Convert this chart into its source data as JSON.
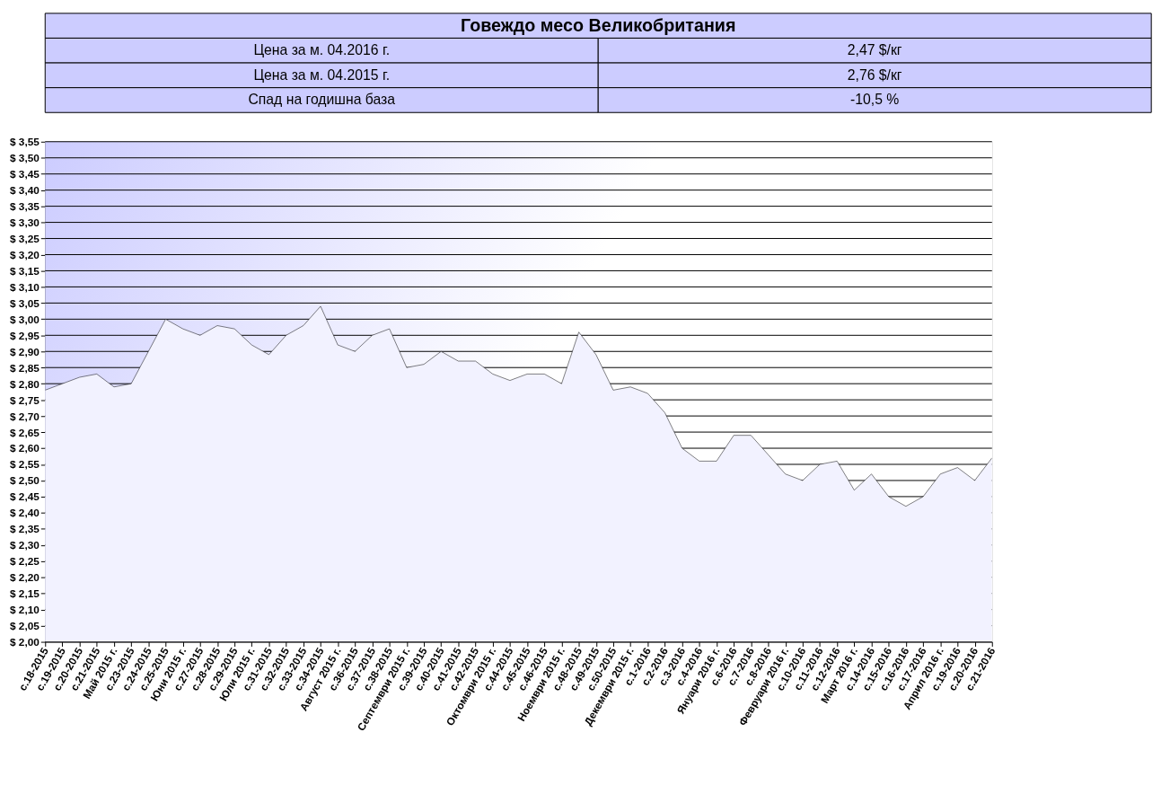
{
  "chart_data": {
    "type": "area",
    "title": "Говеждо месо Великобритания",
    "annotations": [
      "Цена за м. 04.2016 г.",
      "2,47 $/кг",
      "Цена за м. 04.2015 г.",
      "2,76 $/кг",
      "Спад на годишна база",
      "-10,5 %"
    ],
    "categories": [
      "с.18-2015",
      "с.19-2015",
      "с.20-2015",
      "с.21-2015",
      "Май 2015 г.",
      "с.23-2015",
      "с.24-2015",
      "с.25-2015",
      "Юни 2015 г.",
      "с.27-2015",
      "с.28-2015",
      "с.29-2015",
      "Юли 2015 г.",
      "с.31-2015",
      "с.32-2015",
      "с.33-2015",
      "с.34-2015",
      "Август 2015 г.",
      "с.36-2015",
      "с.37-2015",
      "с.38-2015",
      "Септември 2015 г.",
      "с.39-2015",
      "с.40-2015",
      "с.41-2015",
      "с.42-2015",
      "Октомври 2015 г.",
      "с.44-2015",
      "с.45-2015",
      "с.46-2015",
      "Ноември 2015 г.",
      "с.48-2015",
      "с.49-2015",
      "с.50-2015",
      "Декември 2015 г.",
      "с.1-2016",
      "с.2-2016",
      "с.3-2016",
      "с.4-2016",
      "Януари 2016 г.",
      "с.6-2016",
      "с.7-2016",
      "с.8-2016",
      "Февруари 2016 г.",
      "с.10-2016",
      "с.11-2016",
      "с.12-2016",
      "Март 2016 г.",
      "с.14-2016",
      "с.15-2016",
      "с.16-2016",
      "с.17-2016",
      "Април 2016 г.",
      "с.19-2016",
      "с.20-2016",
      "с.21-2016"
    ],
    "series": [
      {
        "color": "#f2f2ff",
        "values": [
          2.78,
          2.8,
          2.82,
          2.83,
          2.79,
          2.8,
          2.9,
          3.0,
          2.97,
          2.95,
          2.98,
          2.97,
          2.92,
          2.89,
          2.95,
          2.98,
          3.04,
          2.92,
          2.9,
          2.95,
          2.97,
          2.85,
          2.86,
          2.9,
          2.87,
          2.87,
          2.83,
          2.81,
          2.83,
          2.83,
          2.8,
          2.96,
          2.89,
          2.78,
          2.79,
          2.77,
          2.71,
          2.6,
          2.56,
          2.56,
          2.64,
          2.64,
          2.58,
          2.52,
          2.5,
          2.55,
          2.56,
          2.47,
          2.52,
          2.45,
          2.42,
          2.45,
          2.52,
          2.54,
          2.5,
          2.57
        ]
      }
    ],
    "ylim": [
      2.0,
      3.55
    ],
    "yticks": [
      {
        "value": 2.0,
        "label": "$ 2,00"
      },
      {
        "value": 2.05,
        "label": "$ 2,05"
      },
      {
        "value": 2.1,
        "label": "$ 2,10"
      },
      {
        "value": 2.15,
        "label": "$ 2,15"
      },
      {
        "value": 2.2,
        "label": "$ 2,20"
      },
      {
        "value": 2.25,
        "label": "$ 2,25"
      },
      {
        "value": 2.3,
        "label": "$ 2,30"
      },
      {
        "value": 2.35,
        "label": "$ 2,35"
      },
      {
        "value": 2.4,
        "label": "$ 2,40"
      },
      {
        "value": 2.45,
        "label": "$ 2,45"
      },
      {
        "value": 2.5,
        "label": "$ 2,50"
      },
      {
        "value": 2.55,
        "label": "$ 2,55"
      },
      {
        "value": 2.6,
        "label": "$ 2,60"
      },
      {
        "value": 2.65,
        "label": "$ 2,65"
      },
      {
        "value": 2.7,
        "label": "$ 2,70"
      },
      {
        "value": 2.75,
        "label": "$ 2,75"
      },
      {
        "value": 2.8,
        "label": "$ 2,80"
      },
      {
        "value": 2.85,
        "label": "$ 2,85"
      },
      {
        "value": 2.9,
        "label": "$ 2,90"
      },
      {
        "value": 2.95,
        "label": "$ 2,95"
      },
      {
        "value": 3.0,
        "label": "$ 3,00"
      },
      {
        "value": 3.05,
        "label": "$ 3,05"
      },
      {
        "value": 3.1,
        "label": "$ 3,10"
      },
      {
        "value": 3.15,
        "label": "$ 3,15"
      },
      {
        "value": 3.2,
        "label": "$ 3,20"
      },
      {
        "value": 3.25,
        "label": "$ 3,25"
      },
      {
        "value": 3.3,
        "label": "$ 3,30"
      },
      {
        "value": 3.35,
        "label": "$ 3,35"
      },
      {
        "value": 3.4,
        "label": "$ 3,40"
      },
      {
        "value": 3.45,
        "label": "$ 3,45"
      },
      {
        "value": 3.5,
        "label": "$ 3,50"
      },
      {
        "value": 3.55,
        "label": "$ 3,55"
      }
    ],
    "grid": "y"
  }
}
